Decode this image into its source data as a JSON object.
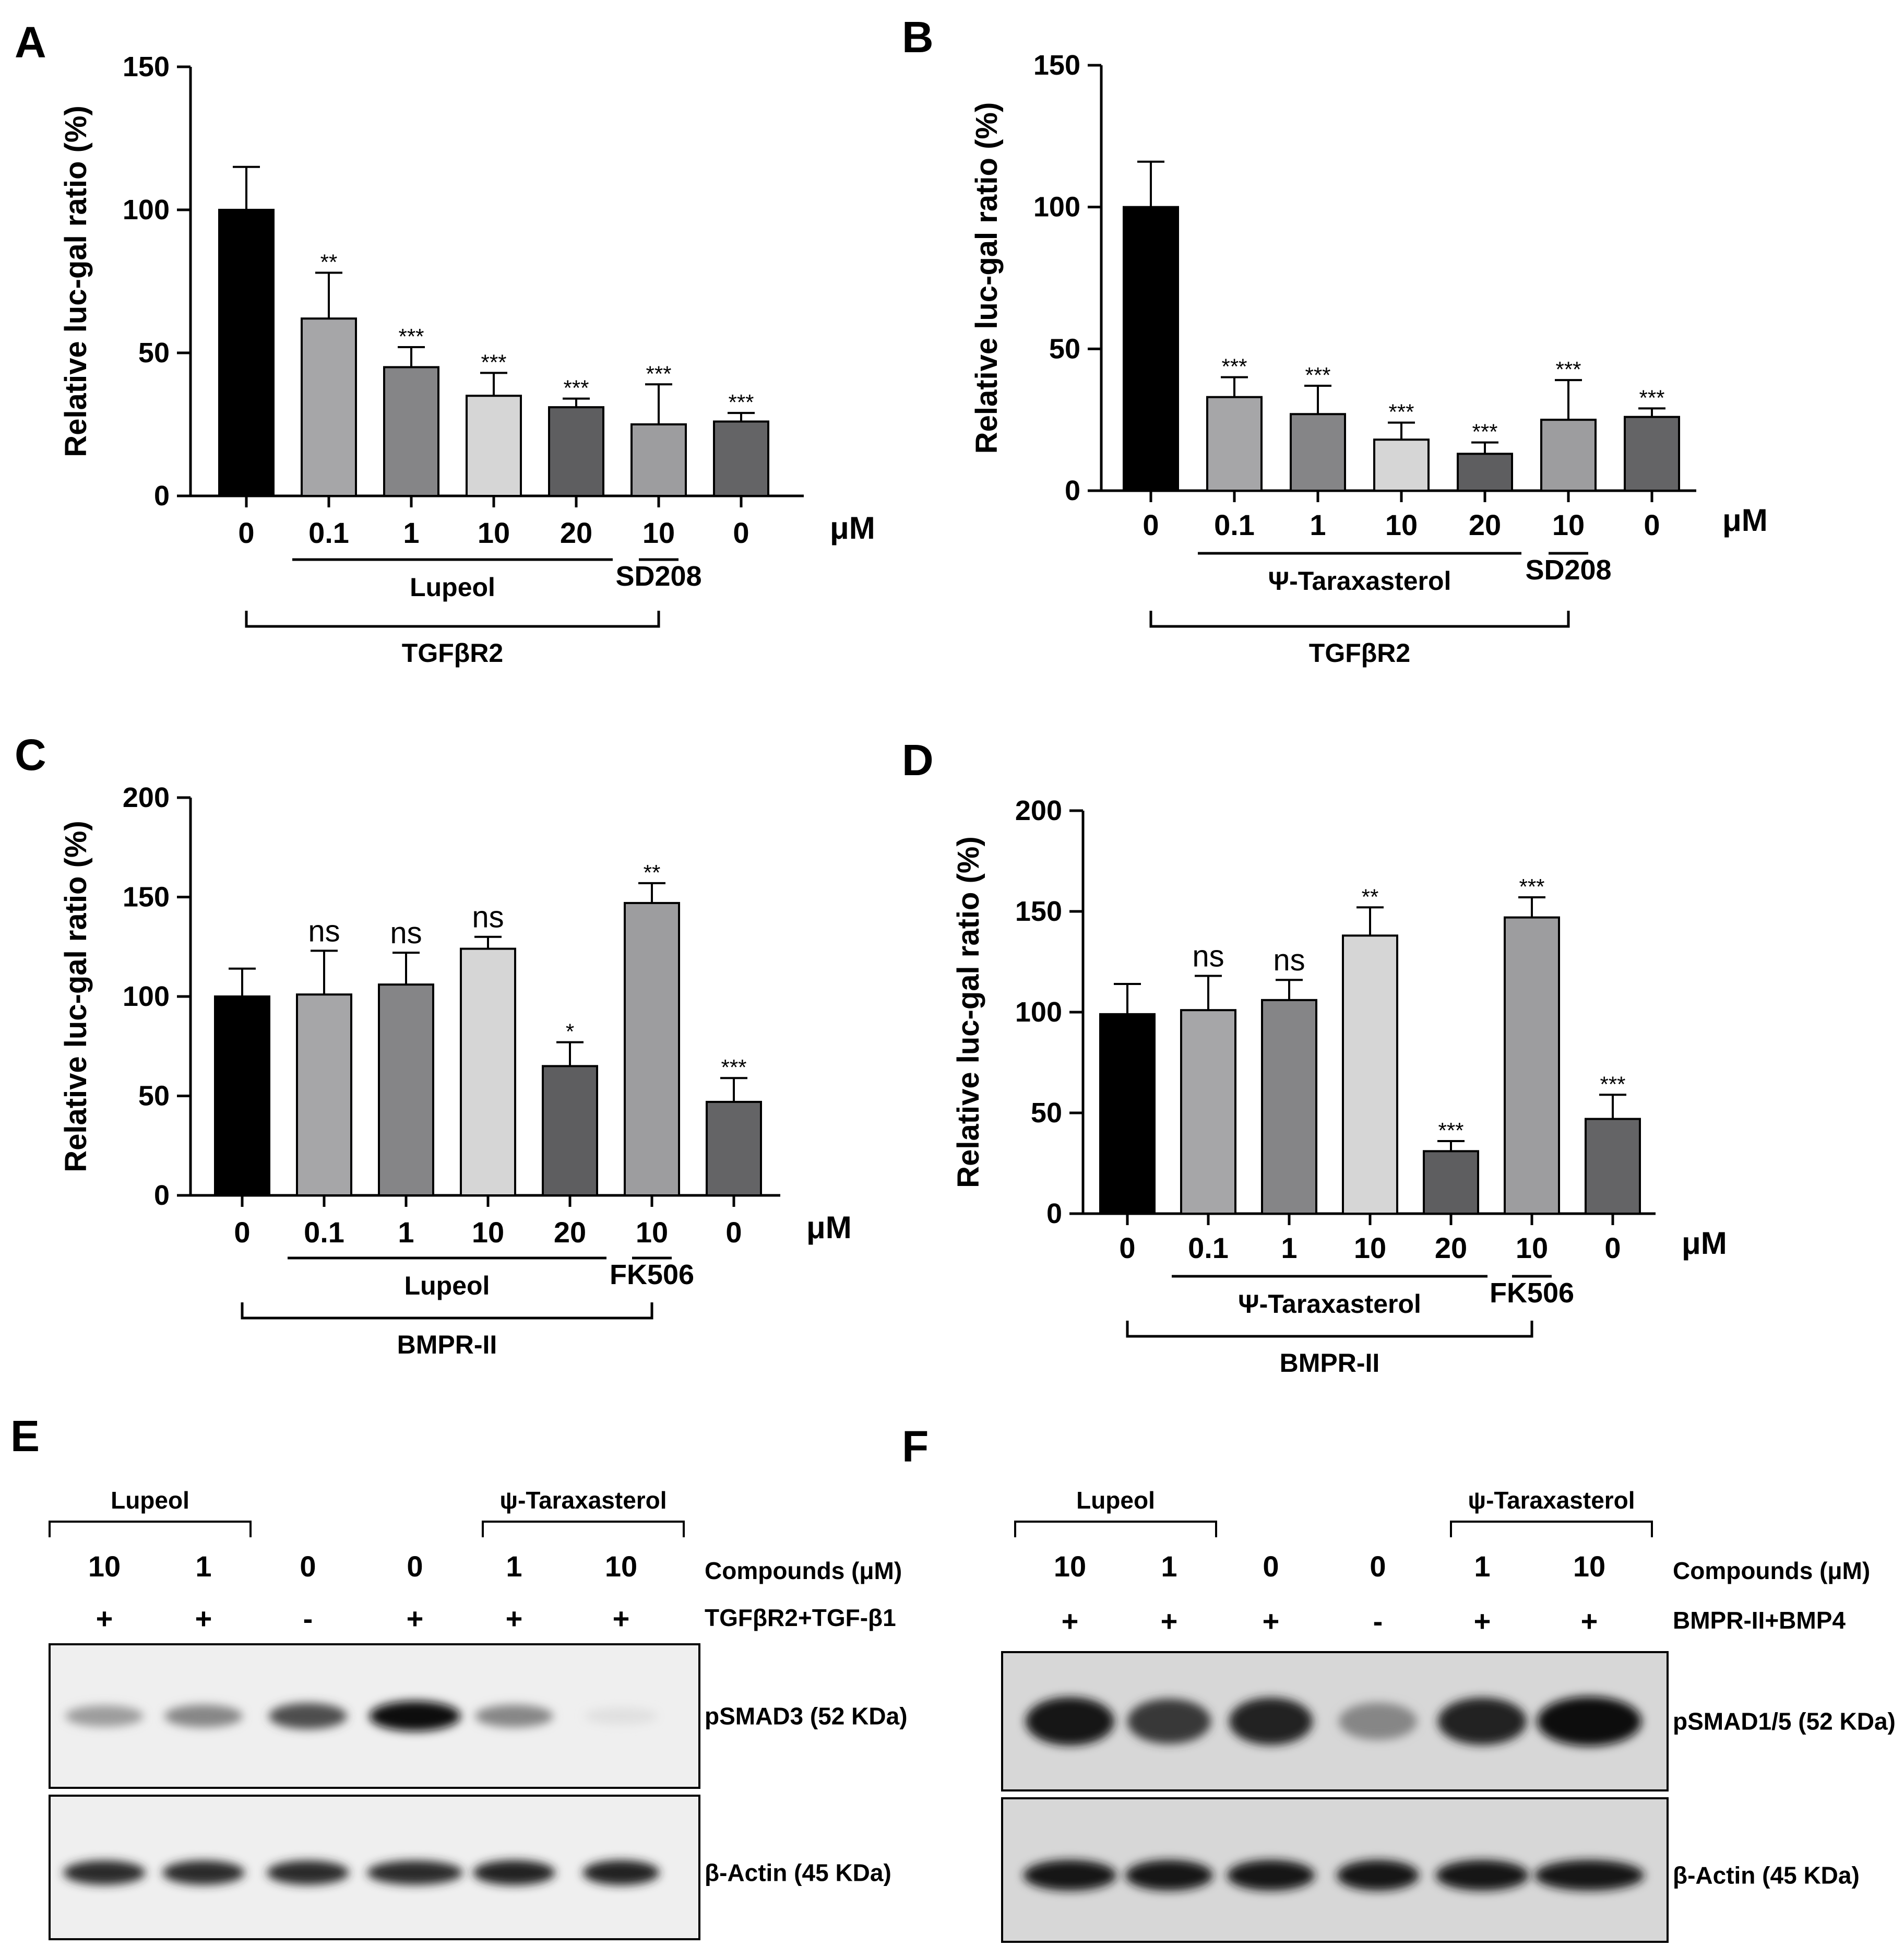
{
  "colors": {
    "c0": "#000000",
    "c1": "#a6a6a8",
    "c2": "#858587",
    "c3": "#d6d6d6",
    "c4": "#5e5e60",
    "c5": "#9d9d9f",
    "c6": "#646466",
    "axis": "#000000"
  },
  "chart_data": [
    {
      "panel": "A",
      "type": "bar",
      "ylabel": "Relative luc-gal ratio (%)",
      "ylim": [
        0,
        150
      ],
      "yticks": [
        0,
        50,
        100,
        150
      ],
      "unit": "μM",
      "categories": [
        "0",
        "0.1",
        "1",
        "10",
        "20",
        "10",
        "0"
      ],
      "values": [
        100,
        62,
        45,
        35,
        31,
        25,
        26
      ],
      "errors": [
        15,
        16,
        7,
        8,
        3,
        14,
        3
      ],
      "significance": [
        "",
        "**",
        "***",
        "***",
        "***",
        "***",
        "***"
      ],
      "groups": [
        {
          "label": "Lupeol",
          "from": 1,
          "to": 4
        },
        {
          "label": "SD208",
          "from": 5,
          "to": 5
        }
      ],
      "bracket": {
        "label": "TGFβR2",
        "from": 0,
        "to": 5
      }
    },
    {
      "panel": "B",
      "type": "bar",
      "ylabel": "Relative luc-gal ratio (%)",
      "ylim": [
        0,
        150
      ],
      "yticks": [
        0,
        50,
        100,
        150
      ],
      "unit": "μM",
      "categories": [
        "0",
        "0.1",
        "1",
        "10",
        "20",
        "10",
        "0"
      ],
      "values": [
        100,
        33,
        27,
        18,
        13,
        25,
        26
      ],
      "errors": [
        16,
        7,
        10,
        6,
        4,
        14,
        3
      ],
      "significance": [
        "",
        "***",
        "***",
        "***",
        "***",
        "***",
        "***"
      ],
      "groups": [
        {
          "label": "Ψ-Taraxasterol",
          "from": 1,
          "to": 4
        },
        {
          "label": "SD208",
          "from": 5,
          "to": 5
        }
      ],
      "bracket": {
        "label": "TGFβR2",
        "from": 0,
        "to": 5
      }
    },
    {
      "panel": "C",
      "type": "bar",
      "ylabel": "Relative luc-gal ratio (%)",
      "ylim": [
        0,
        200
      ],
      "yticks": [
        0,
        50,
        100,
        150,
        200
      ],
      "unit": "μM",
      "categories": [
        "0",
        "0.1",
        "1",
        "10",
        "20",
        "10",
        "0"
      ],
      "values": [
        100,
        101,
        106,
        124,
        65,
        147,
        47
      ],
      "errors": [
        14,
        22,
        16,
        6,
        12,
        10,
        12
      ],
      "significance": [
        "",
        "ns",
        "ns",
        "ns",
        "*",
        "**",
        "***"
      ],
      "groups": [
        {
          "label": "Lupeol",
          "from": 1,
          "to": 4
        },
        {
          "label": "FK506",
          "from": 5,
          "to": 5
        }
      ],
      "bracket": {
        "label": "BMPR-II",
        "from": 0,
        "to": 5
      }
    },
    {
      "panel": "D",
      "type": "bar",
      "ylabel": "Relative luc-gal ratio (%)",
      "ylim": [
        0,
        200
      ],
      "yticks": [
        0,
        50,
        100,
        150,
        200
      ],
      "unit": "μM",
      "categories": [
        "0",
        "0.1",
        "1",
        "10",
        "20",
        "10",
        "0"
      ],
      "values": [
        99,
        101,
        106,
        138,
        31,
        147,
        47
      ],
      "errors": [
        15,
        17,
        10,
        14,
        5,
        10,
        12
      ],
      "significance": [
        "",
        "ns",
        "ns",
        "**",
        "***",
        "***",
        "***"
      ],
      "groups": [
        {
          "label": "Ψ-Taraxasterol",
          "from": 1,
          "to": 4
        },
        {
          "label": "FK506",
          "from": 5,
          "to": 5
        }
      ],
      "bracket": {
        "label": "BMPR-II",
        "from": 0,
        "to": 5
      }
    }
  ],
  "blots": [
    {
      "panel": "E",
      "left_compound": "Lupeol",
      "right_compound": "ψ-Taraxasterol",
      "compounds_label": "Compounds (μM)",
      "doses": [
        "10",
        "1",
        "0",
        "0",
        "1",
        "10"
      ],
      "treatment_label": "TGFβR2+TGF-β1",
      "treatment": [
        "+",
        "+",
        "-",
        "+",
        "+",
        "+"
      ],
      "band1_label": "pSMAD3 (52 KDa)",
      "band1_intensity": [
        0.35,
        0.45,
        0.7,
        1.0,
        0.45,
        0.05
      ],
      "band2_label": "β-Actin (45 KDa)",
      "band2_intensity": [
        0.85,
        0.85,
        0.85,
        0.85,
        0.9,
        0.9
      ]
    },
    {
      "panel": "F",
      "left_compound": "Lupeol",
      "right_compound": "ψ-Taraxasterol",
      "compounds_label": "Compounds (μM)",
      "doses": [
        "10",
        "1",
        "0",
        "0",
        "1",
        "10"
      ],
      "treatment_label": "BMPR-II+BMP4",
      "treatment": [
        "+",
        "+",
        "+",
        "-",
        "+",
        "+"
      ],
      "band1_label": "pSMAD1/5 (52 KDa)",
      "band1_intensity": [
        0.95,
        0.8,
        0.9,
        0.45,
        0.9,
        1.0
      ],
      "band2_label": "β-Actin (45 KDa)",
      "band2_intensity": [
        0.95,
        0.95,
        0.95,
        0.95,
        0.95,
        0.95
      ]
    }
  ]
}
